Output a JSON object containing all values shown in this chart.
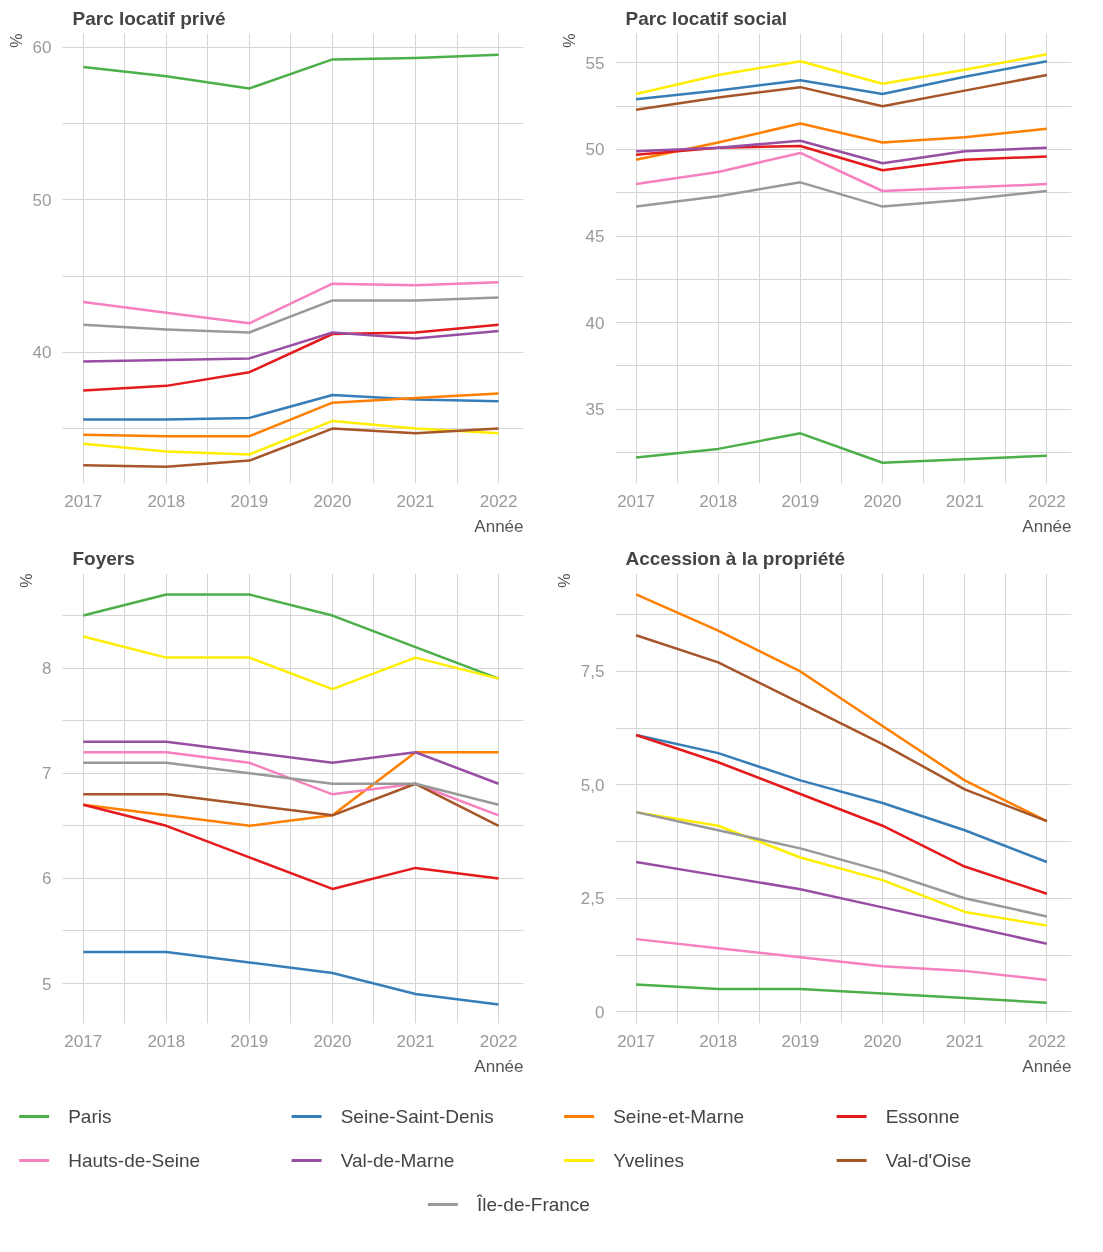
{
  "chart_data": [
    {
      "type": "line",
      "title": "Parc locatif privé",
      "ylabel": "%",
      "xlabel": "Année",
      "x": [
        2017,
        2018,
        2019,
        2020,
        2021,
        2022
      ],
      "xlim": [
        2016.75,
        2022.3
      ],
      "ylim": [
        31.4,
        60.9
      ],
      "xticks": [
        2017,
        2018,
        2019,
        2020,
        2021,
        2022
      ],
      "yticks": [
        40,
        50,
        60
      ],
      "grid": true,
      "legend": "bottom",
      "series": [
        {
          "name": "Paris",
          "color": "#4daf4a",
          "values": [
            58.7,
            58.1,
            57.3,
            59.2,
            59.3,
            59.5
          ]
        },
        {
          "name": "Seine-Saint-Denis",
          "color": "#377eb8",
          "values": [
            35.6,
            35.6,
            35.7,
            37.2,
            36.9,
            36.8
          ]
        },
        {
          "name": "Seine-et-Marne",
          "color": "#ff7f00",
          "values": [
            34.6,
            34.5,
            34.5,
            36.7,
            37.0,
            37.3
          ]
        },
        {
          "name": "Essonne",
          "color": "#e41a1c",
          "values": [
            37.5,
            37.8,
            38.7,
            41.2,
            41.3,
            41.8
          ]
        },
        {
          "name": "Hauts-de-Seine",
          "color": "#f781bf",
          "values": [
            43.3,
            42.6,
            41.9,
            44.5,
            44.4,
            44.6
          ]
        },
        {
          "name": "Val-de-Marne",
          "color": "#984ea3",
          "values": [
            39.4,
            39.5,
            39.6,
            41.3,
            40.9,
            41.4
          ]
        },
        {
          "name": "Yvelines",
          "color": "#ffee00",
          "values": [
            34.0,
            33.5,
            33.3,
            35.5,
            35.0,
            34.7
          ]
        },
        {
          "name": "Val-d'Oise",
          "color": "#a65628",
          "values": [
            32.6,
            32.5,
            32.9,
            35.0,
            34.7,
            35.0
          ]
        },
        {
          "name": "Île-de-France",
          "color": "#999999",
          "values": [
            41.8,
            41.5,
            41.3,
            43.4,
            43.4,
            43.6
          ]
        }
      ]
    },
    {
      "type": "line",
      "title": "Parc locatif social",
      "ylabel": "%",
      "xlabel": "Année",
      "x": [
        2017,
        2018,
        2019,
        2020,
        2021,
        2022
      ],
      "xlim": [
        2016.75,
        2022.3
      ],
      "ylim": [
        30.7,
        56.7
      ],
      "xticks": [
        2017,
        2018,
        2019,
        2020,
        2021,
        2022
      ],
      "yticks": [
        35,
        40,
        45,
        50,
        55
      ],
      "grid": true,
      "series": [
        {
          "color": "#4daf4a",
          "values": [
            32.2,
            32.7,
            33.6,
            31.9,
            32.1,
            32.3
          ]
        },
        {
          "color": "#377eb8",
          "values": [
            52.9,
            53.4,
            54.0,
            53.2,
            54.2,
            55.1
          ]
        },
        {
          "color": "#ff7f00",
          "values": [
            49.4,
            50.4,
            51.5,
            50.4,
            50.7,
            51.2
          ]
        },
        {
          "color": "#e41a1c",
          "values": [
            49.7,
            50.1,
            50.2,
            48.8,
            49.4,
            49.6
          ]
        },
        {
          "color": "#f781bf",
          "values": [
            48.0,
            48.7,
            49.8,
            47.6,
            47.8,
            48.0
          ]
        },
        {
          "color": "#984ea3",
          "values": [
            49.9,
            50.1,
            50.5,
            49.2,
            49.9,
            50.1
          ]
        },
        {
          "color": "#ffee00",
          "values": [
            53.2,
            54.3,
            55.1,
            53.8,
            54.6,
            55.5
          ]
        },
        {
          "color": "#a65628",
          "values": [
            52.3,
            53.0,
            53.6,
            52.5,
            53.4,
            54.3
          ]
        },
        {
          "color": "#999999",
          "values": [
            46.7,
            47.3,
            48.1,
            46.7,
            47.1,
            47.6
          ]
        }
      ]
    },
    {
      "type": "line",
      "title": "Foyers",
      "ylabel": "%",
      "xlabel": "Année",
      "x": [
        2017,
        2018,
        2019,
        2020,
        2021,
        2022
      ],
      "xlim": [
        2016.75,
        2022.3
      ],
      "ylim": [
        4.62,
        8.9
      ],
      "xticks": [
        2017,
        2018,
        2019,
        2020,
        2021,
        2022
      ],
      "yticks": [
        5,
        6,
        7,
        8
      ],
      "grid": true,
      "series": [
        {
          "color": "#4daf4a",
          "values": [
            8.5,
            8.7,
            8.7,
            8.5,
            8.2,
            7.9
          ]
        },
        {
          "color": "#377eb8",
          "values": [
            5.3,
            5.3,
            5.2,
            5.1,
            4.9,
            4.8
          ]
        },
        {
          "color": "#ff7f00",
          "values": [
            6.7,
            6.6,
            6.5,
            6.6,
            7.2,
            7.2
          ]
        },
        {
          "color": "#e41a1c",
          "values": [
            6.7,
            6.5,
            6.2,
            5.9,
            6.1,
            6.0
          ]
        },
        {
          "color": "#f781bf",
          "values": [
            7.2,
            7.2,
            7.1,
            6.8,
            6.9,
            6.6
          ]
        },
        {
          "color": "#984ea3",
          "values": [
            7.3,
            7.3,
            7.2,
            7.1,
            7.2,
            6.9
          ]
        },
        {
          "color": "#ffee00",
          "values": [
            8.3,
            8.1,
            8.1,
            7.8,
            8.1,
            7.9
          ]
        },
        {
          "color": "#a65628",
          "values": [
            6.8,
            6.8,
            6.7,
            6.6,
            6.9,
            6.5
          ]
        },
        {
          "color": "#999999",
          "values": [
            7.1,
            7.1,
            7.0,
            6.9,
            6.9,
            6.7
          ]
        }
      ]
    },
    {
      "type": "line",
      "title": "Accession à la propriété",
      "ylabel": "%",
      "xlabel": "Année",
      "x": [
        2017,
        2018,
        2019,
        2020,
        2021,
        2022
      ],
      "xlim": [
        2016.75,
        2022.3
      ],
      "ylim": [
        -0.26,
        9.66
      ],
      "xticks": [
        2017,
        2018,
        2019,
        2020,
        2021,
        2022
      ],
      "yticks": [
        0,
        {
          "value": 2.5,
          "label": "2,5"
        },
        {
          "value": 5,
          "label": "5,0"
        },
        {
          "value": 7.5,
          "label": "7,5"
        }
      ],
      "grid": true,
      "series": [
        {
          "color": "#4daf4a",
          "values": [
            0.6,
            0.5,
            0.5,
            0.4,
            0.3,
            0.2
          ]
        },
        {
          "color": "#377eb8",
          "values": [
            6.1,
            5.7,
            5.1,
            4.6,
            4.0,
            3.3
          ]
        },
        {
          "color": "#ff7f00",
          "values": [
            9.2,
            8.4,
            7.5,
            6.3,
            5.1,
            4.2
          ]
        },
        {
          "color": "#e41a1c",
          "values": [
            6.1,
            5.5,
            4.8,
            4.1,
            3.2,
            2.6
          ]
        },
        {
          "color": "#f781bf",
          "values": [
            1.6,
            1.4,
            1.2,
            1.0,
            0.9,
            0.7
          ]
        },
        {
          "color": "#984ea3",
          "values": [
            3.3,
            3.0,
            2.7,
            2.3,
            1.9,
            1.5
          ]
        },
        {
          "color": "#ffee00",
          "values": [
            4.4,
            4.1,
            3.4,
            2.9,
            2.2,
            1.9
          ]
        },
        {
          "color": "#a65628",
          "values": [
            8.3,
            7.7,
            6.8,
            5.9,
            4.9,
            4.2
          ]
        },
        {
          "color": "#999999",
          "values": [
            4.4,
            4.0,
            3.6,
            3.1,
            2.5,
            2.1
          ]
        }
      ]
    }
  ]
}
